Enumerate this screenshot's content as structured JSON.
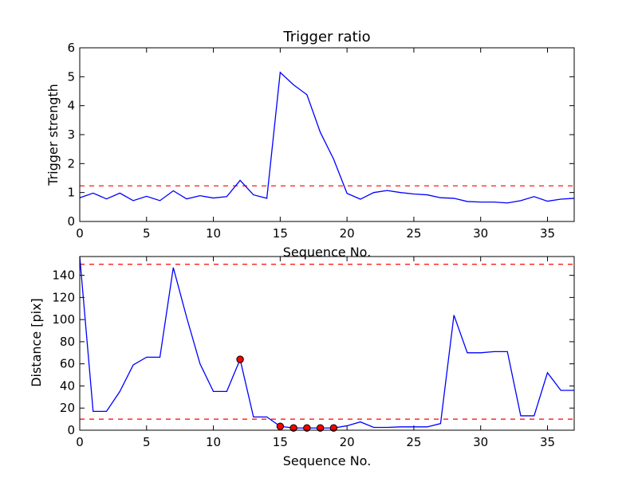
{
  "colors": {
    "line": "#0000ff",
    "threshold": "#ff0000",
    "marker_fill": "#ff0000",
    "marker_edge": "#000000"
  },
  "chart_data": [
    {
      "type": "line",
      "title": "Trigger ratio",
      "xlabel": "Sequence No.",
      "ylabel": "Trigger strength",
      "xlim": [
        0,
        37
      ],
      "ylim": [
        0,
        6
      ],
      "xticks": [
        0,
        5,
        10,
        15,
        20,
        25,
        30,
        35
      ],
      "yticks": [
        0,
        1,
        2,
        3,
        4,
        5,
        6
      ],
      "grid": false,
      "series": [
        {
          "x": [
            0,
            1,
            2,
            3,
            4,
            5,
            6,
            7,
            8,
            9,
            10,
            11,
            12,
            13,
            14,
            15,
            16,
            17,
            18,
            19,
            20,
            21,
            22,
            23,
            24,
            25,
            26,
            27,
            28,
            29,
            30,
            31,
            32,
            33,
            34,
            35,
            36,
            37
          ],
          "values": [
            0.82,
            0.98,
            0.78,
            0.98,
            0.72,
            0.87,
            0.72,
            1.06,
            0.78,
            0.89,
            0.81,
            0.86,
            1.42,
            0.92,
            0.8,
            5.15,
            4.72,
            4.38,
            3.08,
            2.15,
            0.97,
            0.77,
            1.0,
            1.07,
            1.0,
            0.95,
            0.92,
            0.82,
            0.8,
            0.69,
            0.67,
            0.67,
            0.64,
            0.72,
            0.86,
            0.7,
            0.77,
            0.8
          ]
        }
      ],
      "thresholds": [
        1.23
      ],
      "markers": []
    },
    {
      "type": "line",
      "title": "",
      "xlabel": "Sequence No.",
      "ylabel": "Distance [pix]",
      "xlim": [
        0,
        37
      ],
      "ylim": [
        0,
        157
      ],
      "xticks": [
        0,
        5,
        10,
        15,
        20,
        25,
        30,
        35
      ],
      "yticks": [
        0,
        20,
        40,
        60,
        80,
        100,
        120,
        140
      ],
      "grid": false,
      "series": [
        {
          "x": [
            0,
            1,
            2,
            3,
            4,
            5,
            6,
            7,
            8,
            9,
            10,
            11,
            12,
            13,
            14,
            15,
            16,
            17,
            18,
            19,
            20,
            21,
            22,
            23,
            24,
            25,
            26,
            27,
            28,
            29,
            30,
            31,
            32,
            33,
            34,
            35,
            36,
            37
          ],
          "values": [
            157,
            17,
            17,
            35,
            59,
            66,
            66,
            147,
            102,
            60,
            35,
            35,
            64,
            12,
            12,
            3.5,
            2,
            2,
            2,
            2,
            4,
            7.5,
            2.5,
            2.5,
            3,
            3,
            3,
            6,
            104,
            70,
            70,
            71,
            71,
            13,
            13,
            52,
            36,
            36
          ]
        }
      ],
      "thresholds": [
        150,
        10
      ],
      "markers": [
        {
          "x": 12,
          "y": 64
        },
        {
          "x": 15,
          "y": 3.5
        },
        {
          "x": 16,
          "y": 2
        },
        {
          "x": 17,
          "y": 2
        },
        {
          "x": 18,
          "y": 2
        },
        {
          "x": 19,
          "y": 2
        }
      ]
    }
  ]
}
